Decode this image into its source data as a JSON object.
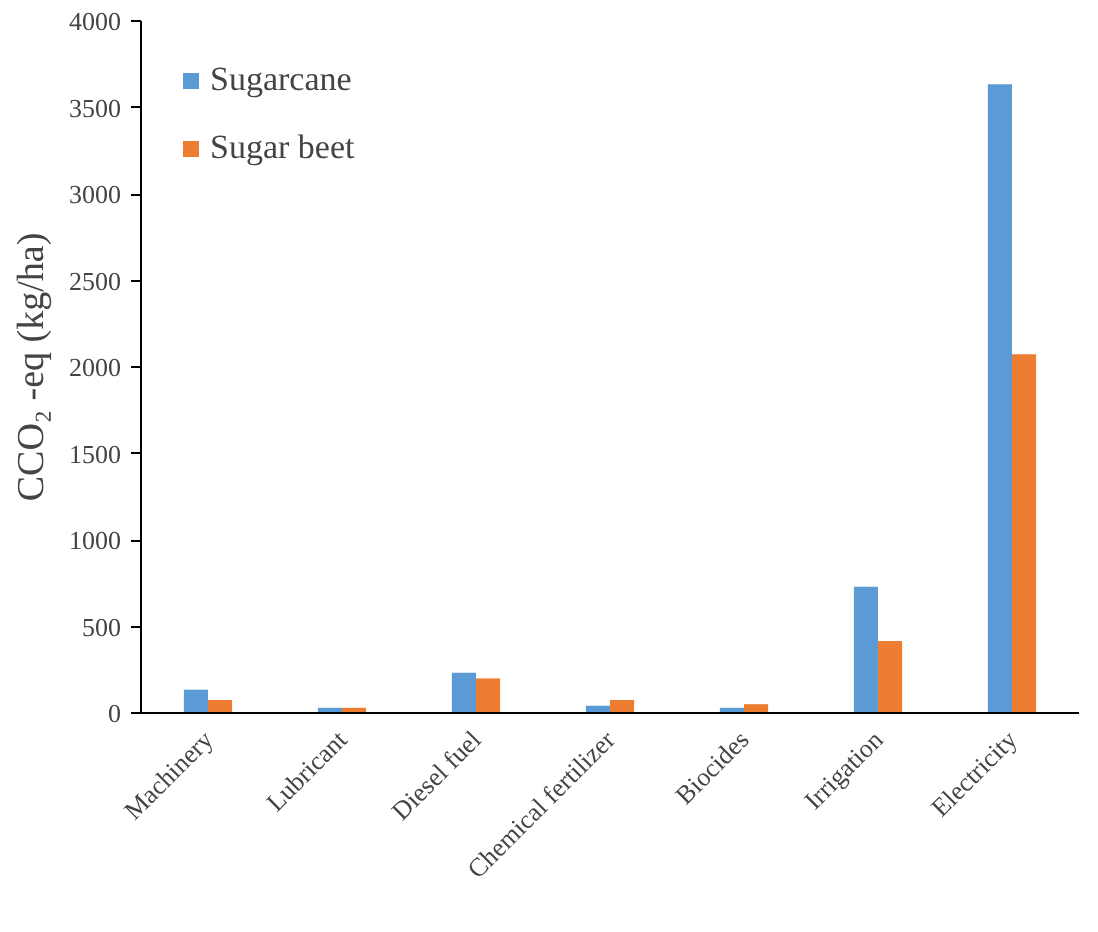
{
  "chart_data": {
    "type": "bar",
    "ylabel": "CCO₂ -eq (kg/ha)",
    "categories": [
      "Machinery",
      "Lubricant",
      "Diesel fuel",
      "Chemical fertilizer",
      "Biocides",
      "Irrigation",
      "Electricity"
    ],
    "series": [
      {
        "name": "Sugarcane",
        "color": "#5b9bd5",
        "values": [
          135,
          30,
          233,
          42,
          30,
          730,
          3634
        ]
      },
      {
        "name": "Sugar beet",
        "color": "#ed7d31",
        "values": [
          75,
          30,
          200,
          75,
          51,
          416,
          2074
        ]
      }
    ],
    "ylim": [
      0,
      4000
    ],
    "yticks": [
      0,
      500,
      1000,
      1500,
      2000,
      2500,
      3000,
      3500,
      4000
    ],
    "grid": false,
    "legend": "top left"
  }
}
